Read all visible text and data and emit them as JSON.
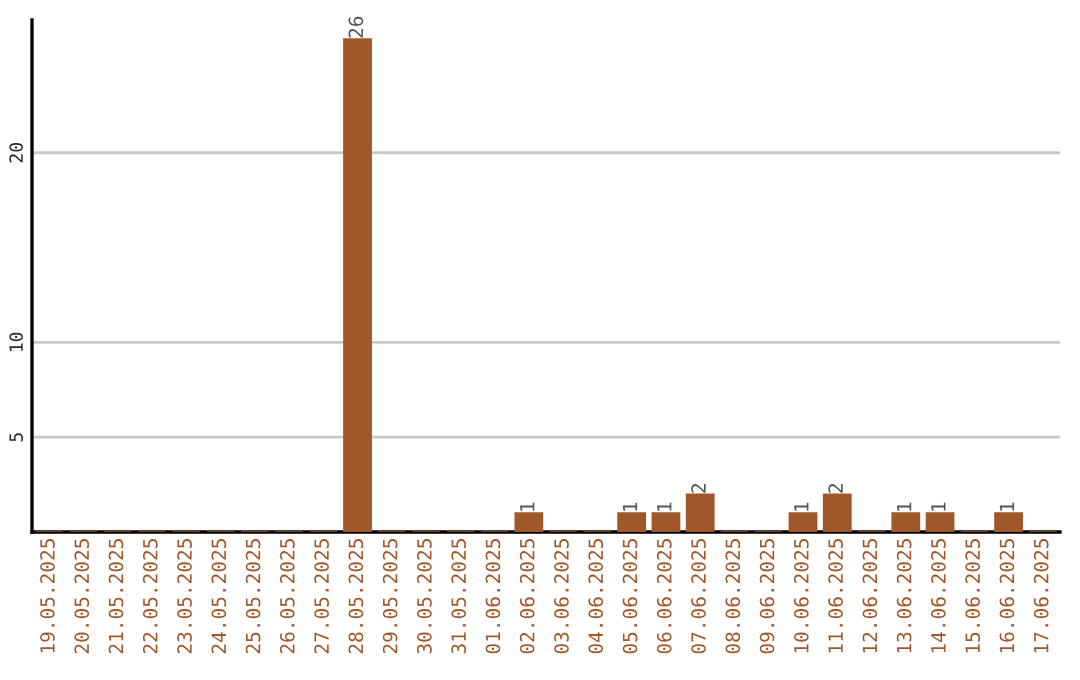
{
  "chart_data": {
    "type": "bar",
    "categories": [
      "19.05.2025",
      "20.05.2025",
      "21.05.2025",
      "22.05.2025",
      "23.05.2025",
      "24.05.2025",
      "25.05.2025",
      "26.05.2025",
      "27.05.2025",
      "28.05.2025",
      "29.05.2025",
      "30.05.2025",
      "31.05.2025",
      "01.06.2025",
      "02.06.2025",
      "03.06.2025",
      "04.06.2025",
      "05.06.2025",
      "06.06.2025",
      "07.06.2025",
      "08.06.2025",
      "09.06.2025",
      "10.06.2025",
      "11.06.2025",
      "12.06.2025",
      "13.06.2025",
      "14.06.2025",
      "15.06.2025",
      "16.06.2025",
      "17.06.2025"
    ],
    "values": [
      0,
      0,
      0,
      0,
      0,
      0,
      0,
      0,
      0,
      26,
      0,
      0,
      0,
      0,
      1,
      0,
      0,
      1,
      1,
      2,
      0,
      0,
      1,
      2,
      0,
      1,
      1,
      0,
      1,
      0
    ],
    "value_labels": [
      null,
      null,
      null,
      null,
      null,
      null,
      null,
      null,
      null,
      "26",
      null,
      null,
      null,
      null,
      "1",
      null,
      null,
      "1",
      "1",
      "2",
      null,
      null,
      "1",
      "2",
      null,
      "1",
      "1",
      null,
      "1",
      null
    ],
    "color": "#a0582a",
    "ylim": [
      0,
      27
    ],
    "yticks": [
      5,
      10,
      20
    ],
    "grid": "y",
    "legend": false
  }
}
